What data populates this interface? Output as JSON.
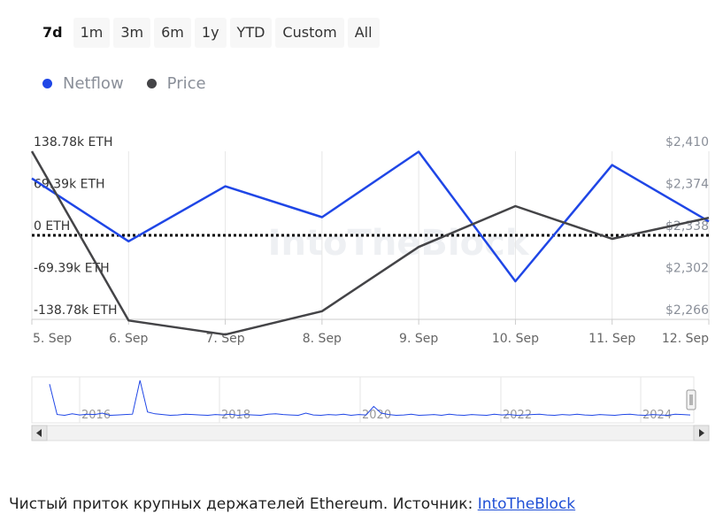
{
  "range_selector": {
    "buttons": [
      "7d",
      "1m",
      "3m",
      "6m",
      "1y",
      "YTD",
      "Custom",
      "All"
    ],
    "active": "7d"
  },
  "legend": {
    "netflow_label": "Netflow",
    "price_label": "Price"
  },
  "colors": {
    "netflow": "#1f46e6",
    "price": "#444447",
    "grid": "#e6e6e6",
    "axis_text_left": "#333333",
    "axis_text_right": "#8a8f99",
    "zero_line": "#000000"
  },
  "watermark": "IntoTheBlock",
  "chart_data": {
    "type": "line",
    "categories": [
      "5. Sep",
      "6. Sep",
      "7. Sep",
      "8. Sep",
      "9. Sep",
      "10. Sep",
      "11. Sep",
      "12. Sep"
    ],
    "y_left": {
      "ticks": [
        "138.78k ETH",
        "69.39k ETH",
        "0 ETH",
        "-69.39k ETH",
        "-138.78k ETH"
      ],
      "values": [
        138780,
        69390,
        0,
        -69390,
        -138780
      ],
      "range": [
        -138780,
        138780
      ]
    },
    "y_right": {
      "ticks": [
        "$2,410",
        "$2,374",
        "$2,338",
        "$2,302",
        "$2,266"
      ],
      "values": [
        2410,
        2374,
        2338,
        2302,
        2266
      ],
      "range": [
        2266,
        2410
      ]
    },
    "series": [
      {
        "name": "Netflow",
        "axis": "left",
        "x": [
          0,
          1,
          2,
          3,
          4,
          5,
          6,
          7
        ],
        "values": [
          94000,
          -10000,
          81000,
          30000,
          138000,
          -76000,
          116000,
          23000
        ]
      },
      {
        "name": "Price",
        "axis": "right",
        "x": [
          -0.03,
          1,
          2,
          3,
          4,
          5,
          6,
          7
        ],
        "values": [
          2410,
          2265,
          2253,
          2273,
          2328,
          2363,
          2335,
          2353
        ]
      }
    ],
    "zero_line": 0,
    "grid": "vertical"
  },
  "navigator": {
    "year_labels": [
      "2016",
      "2018",
      "2020",
      "2022",
      "2024"
    ],
    "values": [
      90,
      8,
      6,
      10,
      7,
      9,
      8,
      12,
      6,
      7,
      8,
      9,
      100,
      15,
      10,
      8,
      6,
      7,
      9,
      8,
      7,
      6,
      8,
      7,
      9,
      6,
      8,
      7,
      6,
      9,
      10,
      8,
      7,
      6,
      12,
      7,
      6,
      8,
      7,
      9,
      6,
      8,
      7,
      30,
      12,
      8,
      6,
      7,
      9,
      6,
      7,
      8,
      6,
      9,
      7,
      6,
      8,
      7,
      6,
      9,
      7,
      8,
      6,
      7,
      8,
      9,
      7,
      6,
      8,
      7,
      9,
      7,
      6,
      8,
      7,
      6,
      8,
      9,
      7,
      6,
      8,
      7,
      6,
      9,
      8,
      7
    ]
  },
  "caption": {
    "text": "Чистый приток крупных держателей Ethereum. Источник: ",
    "link": "IntoTheBlock"
  }
}
